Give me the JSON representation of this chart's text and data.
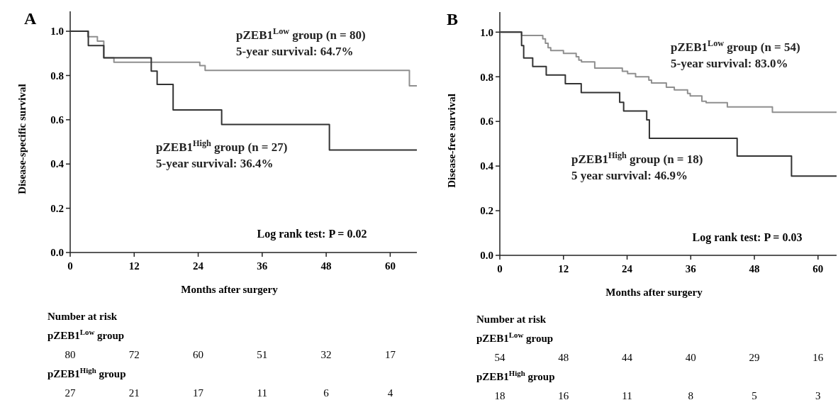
{
  "chart_data": [
    {
      "type": "step",
      "title": "A",
      "xlabel": "Months after surgery",
      "ylabel": "Disease-specific survival",
      "xlim": [
        0,
        65
      ],
      "ylim": [
        0,
        1.09
      ],
      "xticks": [
        0,
        12,
        24,
        36,
        48,
        60
      ],
      "yticks": [
        {
          "value": 0,
          "label": "0.0"
        },
        {
          "value": 0.2,
          "label": "0.2"
        },
        {
          "value": 0.4,
          "label": "0.4"
        },
        {
          "value": 0.6,
          "label": "0.6"
        },
        {
          "value": 0.8,
          "label": "0.8"
        },
        {
          "value": 1,
          "label": "1.0"
        }
      ],
      "series": [
        {
          "name": "pZEB1$^{Low}$ group (n = 80)",
          "color": "#8f8f8f",
          "x": [
            0,
            3.3,
            5.1,
            6.3,
            8.2,
            24.3,
            25.3,
            63.6,
            65
          ],
          "values": [
            1,
            0.975,
            0.955,
            0.88,
            0.86,
            0.845,
            0.823,
            0.753,
            0.753
          ]
        },
        {
          "name": "pZEB1$^{High}$ group (n = 27)",
          "color": "#333333",
          "x": [
            0,
            3.4,
            6.3,
            15.2,
            16.3,
            19.3,
            28.4,
            48.6,
            65
          ],
          "values": [
            1,
            0.935,
            0.88,
            0.82,
            0.76,
            0.644,
            0.579,
            0.463,
            0.463
          ]
        }
      ],
      "annotations": [
        "5-year survival: 64.7%",
        "5-year survival: 36.4%",
        "Log rank test: P = 0.02",
        "Number at risk",
        "pZEB1$^{Low}$ group",
        "80 72 60 51 32 17",
        "pZEB1$^{High}$ group",
        "27 21 17 11 6 4"
      ]
    },
    {
      "type": "step",
      "title": "B",
      "xlabel": "Months after surgery",
      "ylabel": "Disease-free survival",
      "xlim": [
        0,
        63.5
      ],
      "ylim": [
        0,
        1.09
      ],
      "xticks": [
        0,
        12,
        24,
        36,
        48,
        60
      ],
      "yticks": [
        {
          "value": 0,
          "label": "0.0"
        },
        {
          "value": 0.2,
          "label": "0.2"
        },
        {
          "value": 0.4,
          "label": "0.4"
        },
        {
          "value": 0.6,
          "label": "0.6"
        },
        {
          "value": 0.8,
          "label": "0.8"
        },
        {
          "value": 1,
          "label": "1.0"
        }
      ],
      "series": [
        {
          "name": "pZEB1$^{Low}$ group (n = 54)",
          "color": "#8f8f8f",
          "x": [
            0,
            4.1,
            8.1,
            8.6,
            9.1,
            9.6,
            12,
            14.4,
            14.9,
            15.4,
            15.9,
            17.9,
            22.6,
            23.1,
            24.1,
            25.6,
            28.1,
            28.6,
            31.4,
            32.9,
            34.9,
            35.4,
            35.9,
            38.1,
            38.4,
            38.9,
            42.9,
            51.4,
            63.5
          ],
          "values": [
            1,
            0.985,
            0.97,
            0.95,
            0.93,
            0.918,
            0.905,
            0.89,
            0.875,
            0.867,
            0.867,
            0.839,
            0.839,
            0.825,
            0.814,
            0.8,
            0.785,
            0.772,
            0.753,
            0.741,
            0.741,
            0.725,
            0.714,
            0.69,
            0.69,
            0.684,
            0.665,
            0.641,
            0.641
          ]
        },
        {
          "name": "pZEB1$^{High}$ group (n = 18)",
          "color": "#333333",
          "x": [
            0,
            4.1,
            4.5,
            6.2,
            8.75,
            12.35,
            15.35,
            22.6,
            23.35,
            27.7,
            28.2,
            44.75,
            55,
            63.5
          ],
          "values": [
            1,
            0.94,
            0.884,
            0.846,
            0.808,
            0.769,
            0.729,
            0.686,
            0.647,
            0.607,
            0.524,
            0.445,
            0.355,
            0.355
          ]
        }
      ],
      "annotations": [
        "5-year survival: 83.0%",
        "5 year survival: 46.9%",
        "Log rank test: P = 0.03",
        "Number at risk",
        "pZEB1$^{Low}$ group",
        "54 48 44 40 29 16",
        "pZEB1$^{High}$ group",
        "18 16 11 8 5 3"
      ]
    }
  ]
}
